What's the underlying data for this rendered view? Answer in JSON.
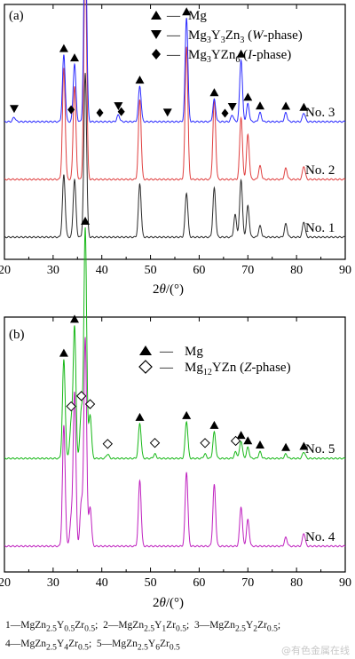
{
  "colors": {
    "No. 1": "#2b2b2b",
    "No. 2": "#e04040",
    "No. 3": "#2a2aff",
    "No. 4": "#bf20bf",
    "No. 5": "#18b818"
  },
  "chart_data": [
    {
      "type": "line",
      "panel_label": "(a)",
      "xlabel": "2θ/(°)",
      "xlim": [
        20,
        90
      ],
      "xticks": [
        20,
        30,
        40,
        50,
        60,
        70,
        80,
        90
      ],
      "legend": [
        {
          "marker": "triangle-up",
          "label": "Mg"
        },
        {
          "marker": "triangle-down",
          "label": "Mg3Y3Zn3 (W-phase)"
        },
        {
          "marker": "diamond",
          "label": "Mg3YZn6 (I-phase)"
        }
      ],
      "series": [
        {
          "name": "No. 1",
          "baseline": 0.0,
          "peaks": [
            [
              32.2,
              0.28
            ],
            [
              34.4,
              0.26
            ],
            [
              36.6,
              0.74
            ],
            [
              47.8,
              0.24
            ],
            [
              57.4,
              0.2
            ],
            [
              63.1,
              0.22
            ],
            [
              67.4,
              0.1
            ],
            [
              68.6,
              0.26
            ],
            [
              70.0,
              0.14
            ],
            [
              72.5,
              0.05
            ],
            [
              77.8,
              0.06
            ],
            [
              81.5,
              0.07
            ]
          ]
        },
        {
          "name": "No. 2",
          "baseline": 0.26,
          "peaks": [
            [
              32.2,
              0.5
            ],
            [
              34.4,
              0.42
            ],
            [
              36.6,
              1.03
            ],
            [
              47.8,
              0.36
            ],
            [
              57.4,
              0.6
            ],
            [
              63.1,
              0.36
            ],
            [
              68.6,
              0.28
            ],
            [
              70.0,
              0.2
            ],
            [
              72.5,
              0.06
            ],
            [
              77.8,
              0.05
            ],
            [
              81.5,
              0.06
            ]
          ]
        },
        {
          "name": "No. 3",
          "baseline": 0.52,
          "peaks": [
            [
              22.0,
              0.02
            ],
            [
              32.2,
              0.3
            ],
            [
              34.4,
              0.26
            ],
            [
              36.6,
              0.96
            ],
            [
              43.4,
              0.03
            ],
            [
              47.8,
              0.16
            ],
            [
              57.4,
              0.47
            ],
            [
              63.1,
              0.1
            ],
            [
              66.8,
              0.03
            ],
            [
              68.6,
              0.28
            ],
            [
              70.0,
              0.08
            ],
            [
              72.5,
              0.04
            ],
            [
              77.8,
              0.04
            ],
            [
              81.5,
              0.04
            ]
          ]
        }
      ],
      "markers": [
        {
          "type": "triangle-up",
          "x": [
            32.2,
            34.4,
            36.6,
            47.8,
            57.4,
            63.1,
            68.6,
            70.0,
            72.5,
            77.8,
            81.5
          ]
        },
        {
          "type": "triangle-down",
          "x": [
            22.0,
            43.4,
            53.5,
            66.8
          ]
        },
        {
          "type": "diamond",
          "x": [
            33.7,
            39.6,
            44.0,
            65.3
          ]
        }
      ]
    },
    {
      "type": "line",
      "panel_label": "(b)",
      "xlabel": "2θ/(°)",
      "xlim": [
        20,
        90
      ],
      "xticks": [
        20,
        30,
        40,
        50,
        60,
        70,
        80,
        90
      ],
      "legend": [
        {
          "marker": "triangle-up",
          "label": "Mg"
        },
        {
          "marker": "diamond-open",
          "label": "Mg12YZn (Z-phase)"
        }
      ],
      "series": [
        {
          "name": "No. 4",
          "baseline": 0.0,
          "peaks": [
            [
              32.2,
              0.55
            ],
            [
              33.7,
              0.12
            ],
            [
              34.4,
              0.7
            ],
            [
              35.8,
              0.2
            ],
            [
              36.6,
              0.95
            ],
            [
              37.6,
              0.18
            ],
            [
              47.8,
              0.3
            ],
            [
              57.4,
              0.34
            ],
            [
              63.1,
              0.28
            ],
            [
              68.6,
              0.18
            ],
            [
              70.0,
              0.12
            ],
            [
              77.8,
              0.04
            ],
            [
              81.5,
              0.06
            ]
          ]
        },
        {
          "name": "No. 5",
          "baseline": 0.4,
          "peaks": [
            [
              32.2,
              0.45
            ],
            [
              33.7,
              0.16
            ],
            [
              34.4,
              0.6
            ],
            [
              35.8,
              0.22
            ],
            [
              36.6,
              1.05
            ],
            [
              37.6,
              0.2
            ],
            [
              41.2,
              0.02
            ],
            [
              47.8,
              0.16
            ],
            [
              50.9,
              0.02
            ],
            [
              57.4,
              0.17
            ],
            [
              61.2,
              0.02
            ],
            [
              63.1,
              0.12
            ],
            [
              67.5,
              0.03
            ],
            [
              68.6,
              0.08
            ],
            [
              70.0,
              0.05
            ],
            [
              72.5,
              0.03
            ],
            [
              77.8,
              0.02
            ],
            [
              81.5,
              0.03
            ]
          ]
        }
      ],
      "markers": [
        {
          "type": "triangle-up",
          "x": [
            32.2,
            34.4,
            36.6,
            47.8,
            57.4,
            63.1,
            68.6,
            70.0,
            72.5,
            77.8,
            81.5
          ]
        },
        {
          "type": "diamond-open",
          "x": [
            33.7,
            35.8,
            37.6,
            41.2,
            50.9,
            61.2,
            67.5
          ]
        }
      ]
    }
  ],
  "caption": {
    "line1": "1—MgZn2.5Y0.5Zr0.5; 2—MgZn2.5Y1Zr0.5; 3—MgZn2.5Y2Zr0.5;",
    "line2": "4—MgZn2.5Y4Zr0.5; 5—MgZn2.5Y6Zr0.5"
  },
  "watermark": "@有色金属在线"
}
